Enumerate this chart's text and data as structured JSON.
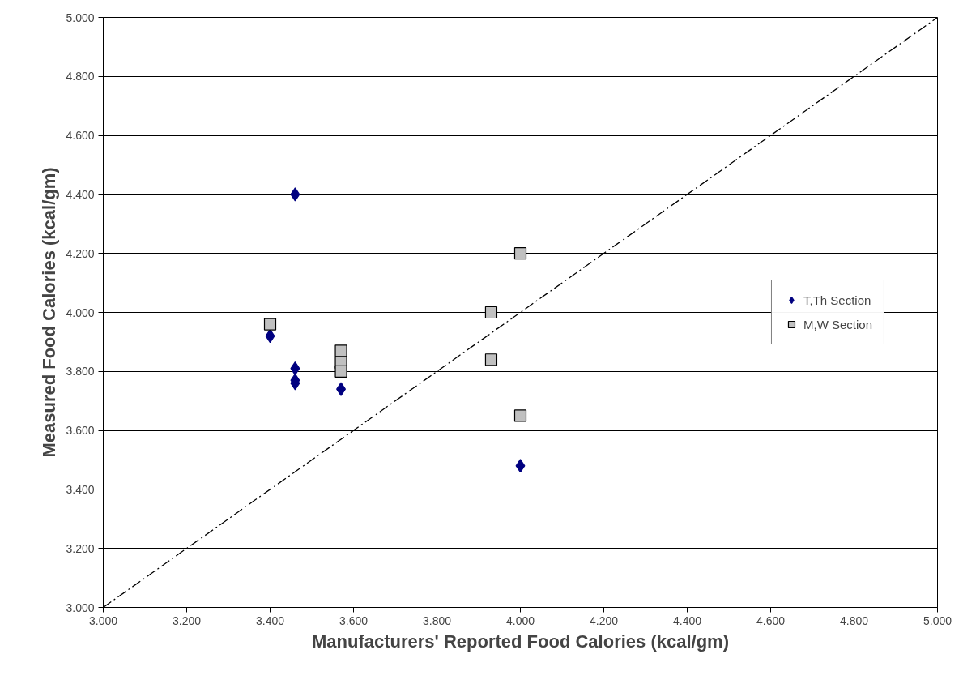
{
  "chart_data": {
    "type": "scatter",
    "xlabel": "Manufacturers' Reported Food Calories (kcal/gm)",
    "ylabel": "Measured Food Calories (kcal/gm)",
    "xlim": [
      3,
      5
    ],
    "ylim": [
      3,
      5
    ],
    "xticks": [
      {
        "value": 3,
        "label": "3.000"
      },
      {
        "value": 3.2,
        "label": "3.200"
      },
      {
        "value": 3.4,
        "label": "3.400"
      },
      {
        "value": 3.6,
        "label": "3.600"
      },
      {
        "value": 3.8,
        "label": "3.800"
      },
      {
        "value": 4,
        "label": "4.000"
      },
      {
        "value": 4.2,
        "label": "4.200"
      },
      {
        "value": 4.4,
        "label": "4.400"
      },
      {
        "value": 4.6,
        "label": "4.600"
      },
      {
        "value": 4.8,
        "label": "4.800"
      },
      {
        "value": 5,
        "label": "5.000"
      }
    ],
    "yticks": [
      {
        "value": 3,
        "label": "3.000"
      },
      {
        "value": 3.2,
        "label": "3.200"
      },
      {
        "value": 3.4,
        "label": "3.400"
      },
      {
        "value": 3.6,
        "label": "3.600"
      },
      {
        "value": 3.8,
        "label": "3.800"
      },
      {
        "value": 4,
        "label": "4.000"
      },
      {
        "value": 4.2,
        "label": "4.200"
      },
      {
        "value": 4.4,
        "label": "4.400"
      },
      {
        "value": 4.6,
        "label": "4.600"
      },
      {
        "value": 4.8,
        "label": "4.800"
      },
      {
        "value": 5,
        "label": "5.000"
      }
    ],
    "grid": "y",
    "legend": "right",
    "series": [
      {
        "name": "T,Th Section",
        "color": "#000080",
        "marker": "diamond",
        "x": [
          3.46,
          3.4,
          3.46,
          3.46,
          3.46,
          3.57,
          4.0
        ],
        "values": [
          4.4,
          3.92,
          3.81,
          3.77,
          3.76,
          3.74,
          3.48
        ]
      },
      {
        "name": "M,W Section",
        "color": "#c0c0c0",
        "marker": "square",
        "x": [
          3.4,
          3.57,
          3.57,
          3.57,
          3.93,
          3.93,
          4.0,
          4.0
        ],
        "values": [
          3.96,
          3.87,
          3.83,
          3.8,
          4.0,
          3.84,
          4.2,
          3.65
        ]
      },
      {
        "type": "line",
        "color": "#000000",
        "line_style": "dashed",
        "marker": "none",
        "x": [
          3,
          5
        ],
        "values": [
          3,
          5
        ]
      }
    ]
  }
}
